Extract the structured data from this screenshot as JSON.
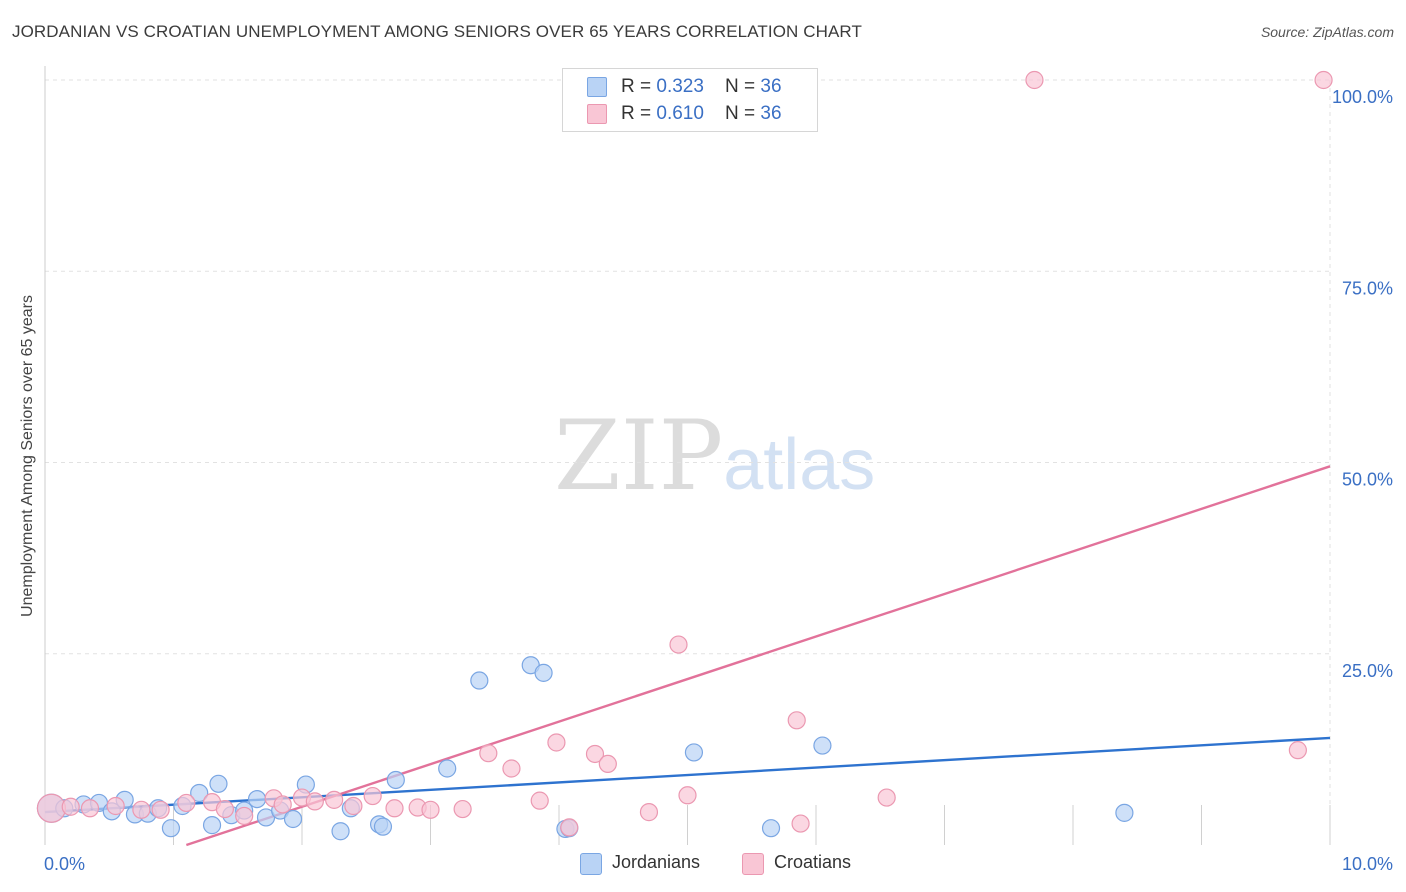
{
  "header": {
    "title": "JORDANIAN VS CROATIAN UNEMPLOYMENT AMONG SENIORS OVER 65 YEARS CORRELATION CHART",
    "source": "Source: ZipAtlas.com"
  },
  "watermark": {
    "zip": "ZIP",
    "atlas": "atlas"
  },
  "legend_top": {
    "rows": [
      {
        "r_label": "R = ",
        "r_value": "0.323",
        "n_label": "N = ",
        "n_value": "36"
      },
      {
        "r_label": "R = ",
        "r_value": "0.610",
        "n_label": "N = ",
        "n_value": "36"
      }
    ]
  },
  "legend_bottom": {
    "items": [
      "Jordanians",
      "Croatians"
    ]
  },
  "colors": {
    "blue_fill": "#b9d3f5",
    "blue_stroke": "#7aa6e3",
    "blue_line": "#2e73cf",
    "pink_fill": "#f9c6d5",
    "pink_stroke": "#eb98b1",
    "pink_line": "#e2729a",
    "tick_label": "#3a6fc4",
    "grid": "#e2e2e2"
  },
  "chart_data": {
    "type": "scatter",
    "title": "JORDANIAN VS CROATIAN UNEMPLOYMENT AMONG SENIORS OVER 65 YEARS CORRELATION CHART",
    "xlabel": "",
    "ylabel": "Unemployment Among Seniors over 65 years",
    "xlim": [
      0,
      10
    ],
    "ylim": [
      0,
      100
    ],
    "x_tick_labels": [
      "0.0%",
      "10.0%"
    ],
    "y_tick_labels": [
      "25.0%",
      "50.0%",
      "75.0%",
      "100.0%"
    ],
    "y_tick_values": [
      25,
      50,
      75,
      100
    ],
    "x_minor_ticks": [
      1,
      2,
      3,
      4,
      5,
      6,
      7,
      8,
      9,
      10
    ],
    "series": [
      {
        "name": "Jordanians",
        "r": 0.323,
        "n": 36,
        "trend": [
          [
            0.0,
            4.3
          ],
          [
            10.0,
            14.0
          ]
        ],
        "points": [
          [
            0.05,
            4.8
          ],
          [
            0.15,
            4.8
          ],
          [
            0.3,
            5.3
          ],
          [
            0.42,
            5.5
          ],
          [
            0.52,
            4.4
          ],
          [
            0.62,
            5.9
          ],
          [
            0.7,
            4.0
          ],
          [
            0.8,
            4.1
          ],
          [
            0.88,
            4.8
          ],
          [
            0.98,
            2.2
          ],
          [
            1.07,
            5.1
          ],
          [
            1.2,
            6.8
          ],
          [
            1.3,
            2.6
          ],
          [
            1.35,
            8.0
          ],
          [
            1.45,
            3.9
          ],
          [
            1.55,
            4.5
          ],
          [
            1.65,
            6.0
          ],
          [
            1.72,
            3.6
          ],
          [
            1.83,
            4.5
          ],
          [
            1.93,
            3.4
          ],
          [
            2.03,
            7.9
          ],
          [
            2.3,
            1.8
          ],
          [
            2.38,
            4.8
          ],
          [
            2.6,
            2.7
          ],
          [
            2.63,
            2.4
          ],
          [
            2.73,
            8.5
          ],
          [
            3.13,
            10.0
          ],
          [
            3.38,
            21.5
          ],
          [
            3.78,
            23.5
          ],
          [
            3.88,
            22.5
          ],
          [
            4.05,
            2.1
          ],
          [
            4.08,
            2.2
          ],
          [
            5.05,
            12.1
          ],
          [
            5.65,
            2.2
          ],
          [
            6.05,
            13.0
          ],
          [
            8.4,
            4.2
          ]
        ]
      },
      {
        "name": "Croatians",
        "r": 0.61,
        "n": 36,
        "trend": [
          [
            1.1,
            0.0
          ],
          [
            10.0,
            49.5
          ]
        ],
        "points": [
          [
            0.05,
            4.8
          ],
          [
            0.2,
            5.0
          ],
          [
            0.35,
            4.8
          ],
          [
            0.55,
            5.1
          ],
          [
            0.75,
            4.6
          ],
          [
            0.9,
            4.6
          ],
          [
            1.1,
            5.5
          ],
          [
            1.3,
            5.6
          ],
          [
            1.4,
            4.7
          ],
          [
            1.55,
            3.8
          ],
          [
            1.78,
            6.1
          ],
          [
            1.85,
            5.3
          ],
          [
            2.0,
            6.2
          ],
          [
            2.1,
            5.7
          ],
          [
            2.25,
            5.9
          ],
          [
            2.4,
            5.1
          ],
          [
            2.55,
            6.4
          ],
          [
            2.72,
            4.8
          ],
          [
            2.9,
            4.9
          ],
          [
            3.0,
            4.6
          ],
          [
            3.25,
            4.7
          ],
          [
            3.45,
            12.0
          ],
          [
            3.63,
            10.0
          ],
          [
            3.85,
            5.8
          ],
          [
            3.98,
            13.4
          ],
          [
            4.08,
            2.3
          ],
          [
            4.28,
            11.9
          ],
          [
            4.38,
            10.6
          ],
          [
            4.7,
            4.3
          ],
          [
            4.93,
            26.2
          ],
          [
            5.0,
            6.5
          ],
          [
            5.85,
            16.3
          ],
          [
            5.88,
            2.8
          ],
          [
            6.55,
            6.2
          ],
          [
            7.7,
            100.0
          ],
          [
            9.75,
            12.4
          ]
        ],
        "extra_points": [
          [
            9.95,
            100.0
          ]
        ]
      }
    ]
  }
}
